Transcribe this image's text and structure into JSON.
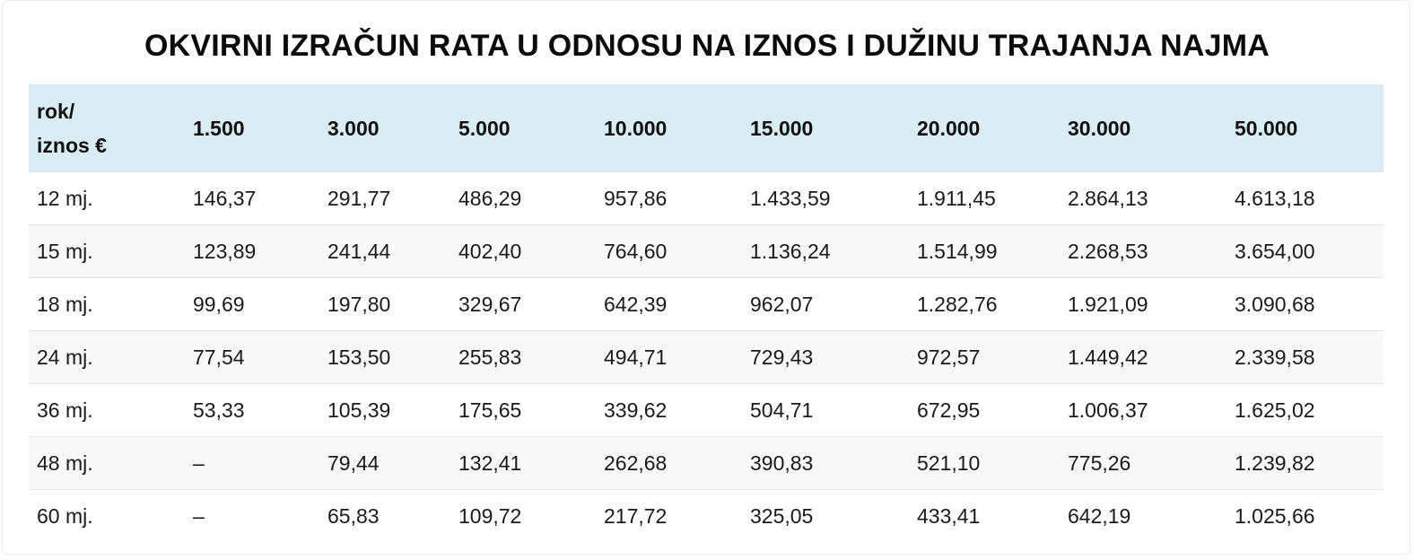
{
  "title": "OKVIRNI IZRAČUN RATA U ODNOSU NA IZNOS I DUŽINU TRAJANJA NAJMA",
  "colors": {
    "header_bg": "#daedf7",
    "alt_row_bg": "#f8f8f8",
    "row_border": "#e3e3e3"
  },
  "table": {
    "corner": {
      "line1": "rok/",
      "line2": "iznos €"
    },
    "columns": [
      "1.500",
      "3.000",
      "5.000",
      "10.000",
      "15.000",
      "20.000",
      "30.000",
      "50.000"
    ],
    "rows": [
      {
        "term": "12 mj.",
        "values": [
          "146,37",
          "291,77",
          "486,29",
          "957,86",
          "1.433,59",
          "1.911,45",
          "2.864,13",
          "4.613,18"
        ]
      },
      {
        "term": "15 mj.",
        "values": [
          "123,89",
          "241,44",
          "402,40",
          "764,60",
          "1.136,24",
          "1.514,99",
          "2.268,53",
          "3.654,00"
        ]
      },
      {
        "term": "18 mj.",
        "values": [
          "99,69",
          "197,80",
          "329,67",
          "642,39",
          "962,07",
          "1.282,76",
          "1.921,09",
          "3.090,68"
        ]
      },
      {
        "term": "24 mj.",
        "values": [
          "77,54",
          "153,50",
          "255,83",
          "494,71",
          "729,43",
          "972,57",
          "1.449,42",
          "2.339,58"
        ]
      },
      {
        "term": "36 mj.",
        "values": [
          "53,33",
          "105,39",
          "175,65",
          "339,62",
          "504,71",
          "672,95",
          "1.006,37",
          "1.625,02"
        ]
      },
      {
        "term": "48 mj.",
        "values": [
          "–",
          "79,44",
          "132,41",
          "262,68",
          "390,83",
          "521,10",
          "775,26",
          "1.239,82"
        ]
      },
      {
        "term": "60 mj.",
        "values": [
          "–",
          "65,83",
          "109,72",
          "217,72",
          "325,05",
          "433,41",
          "642,19",
          "1.025,66"
        ]
      }
    ]
  }
}
